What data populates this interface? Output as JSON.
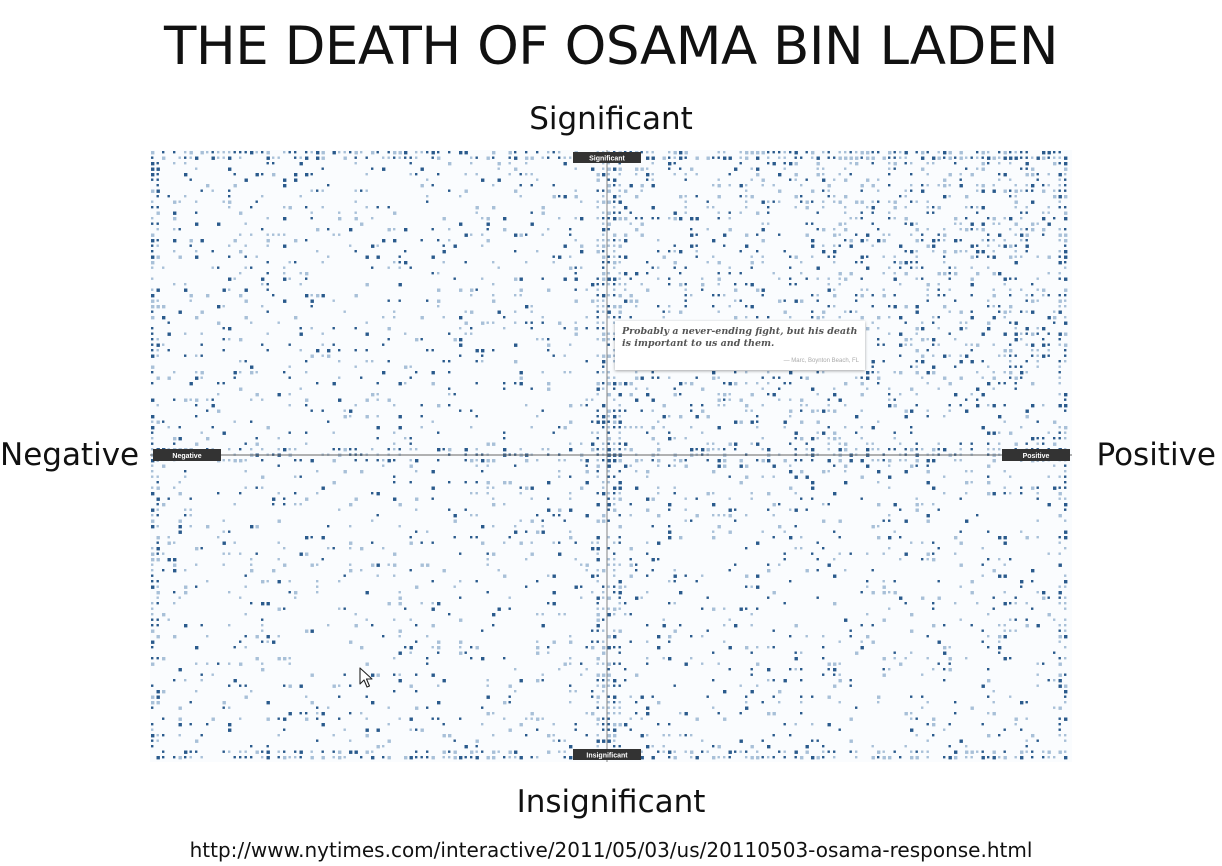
{
  "title": "THE DEATH OF OSAMA BIN LADEN",
  "axis_labels": {
    "top": "Significant",
    "bottom": "Insignificant",
    "left": "Negative",
    "right": "Positive"
  },
  "source_url": "http://www.nytimes.com/interactive/2011/05/03/us/20110503-osama-response.html",
  "quote": {
    "text": "Probably a never-ending fight, but his death is important to us and them.",
    "attribution": "— Marc, Boynton Beach, FL"
  },
  "chart_data": {
    "type": "scatter",
    "x_axis": {
      "min_label": "Negative",
      "max_label": "Positive",
      "range": [
        -1,
        1
      ]
    },
    "y_axis": {
      "min_label": "Insignificant",
      "max_label": "Significant",
      "range": [
        -1,
        1
      ]
    },
    "grid": false,
    "colors": {
      "dot_dark": "#2a5a8c",
      "dot_light": "#a8c0d8",
      "label_bg": "#333333"
    }
  }
}
